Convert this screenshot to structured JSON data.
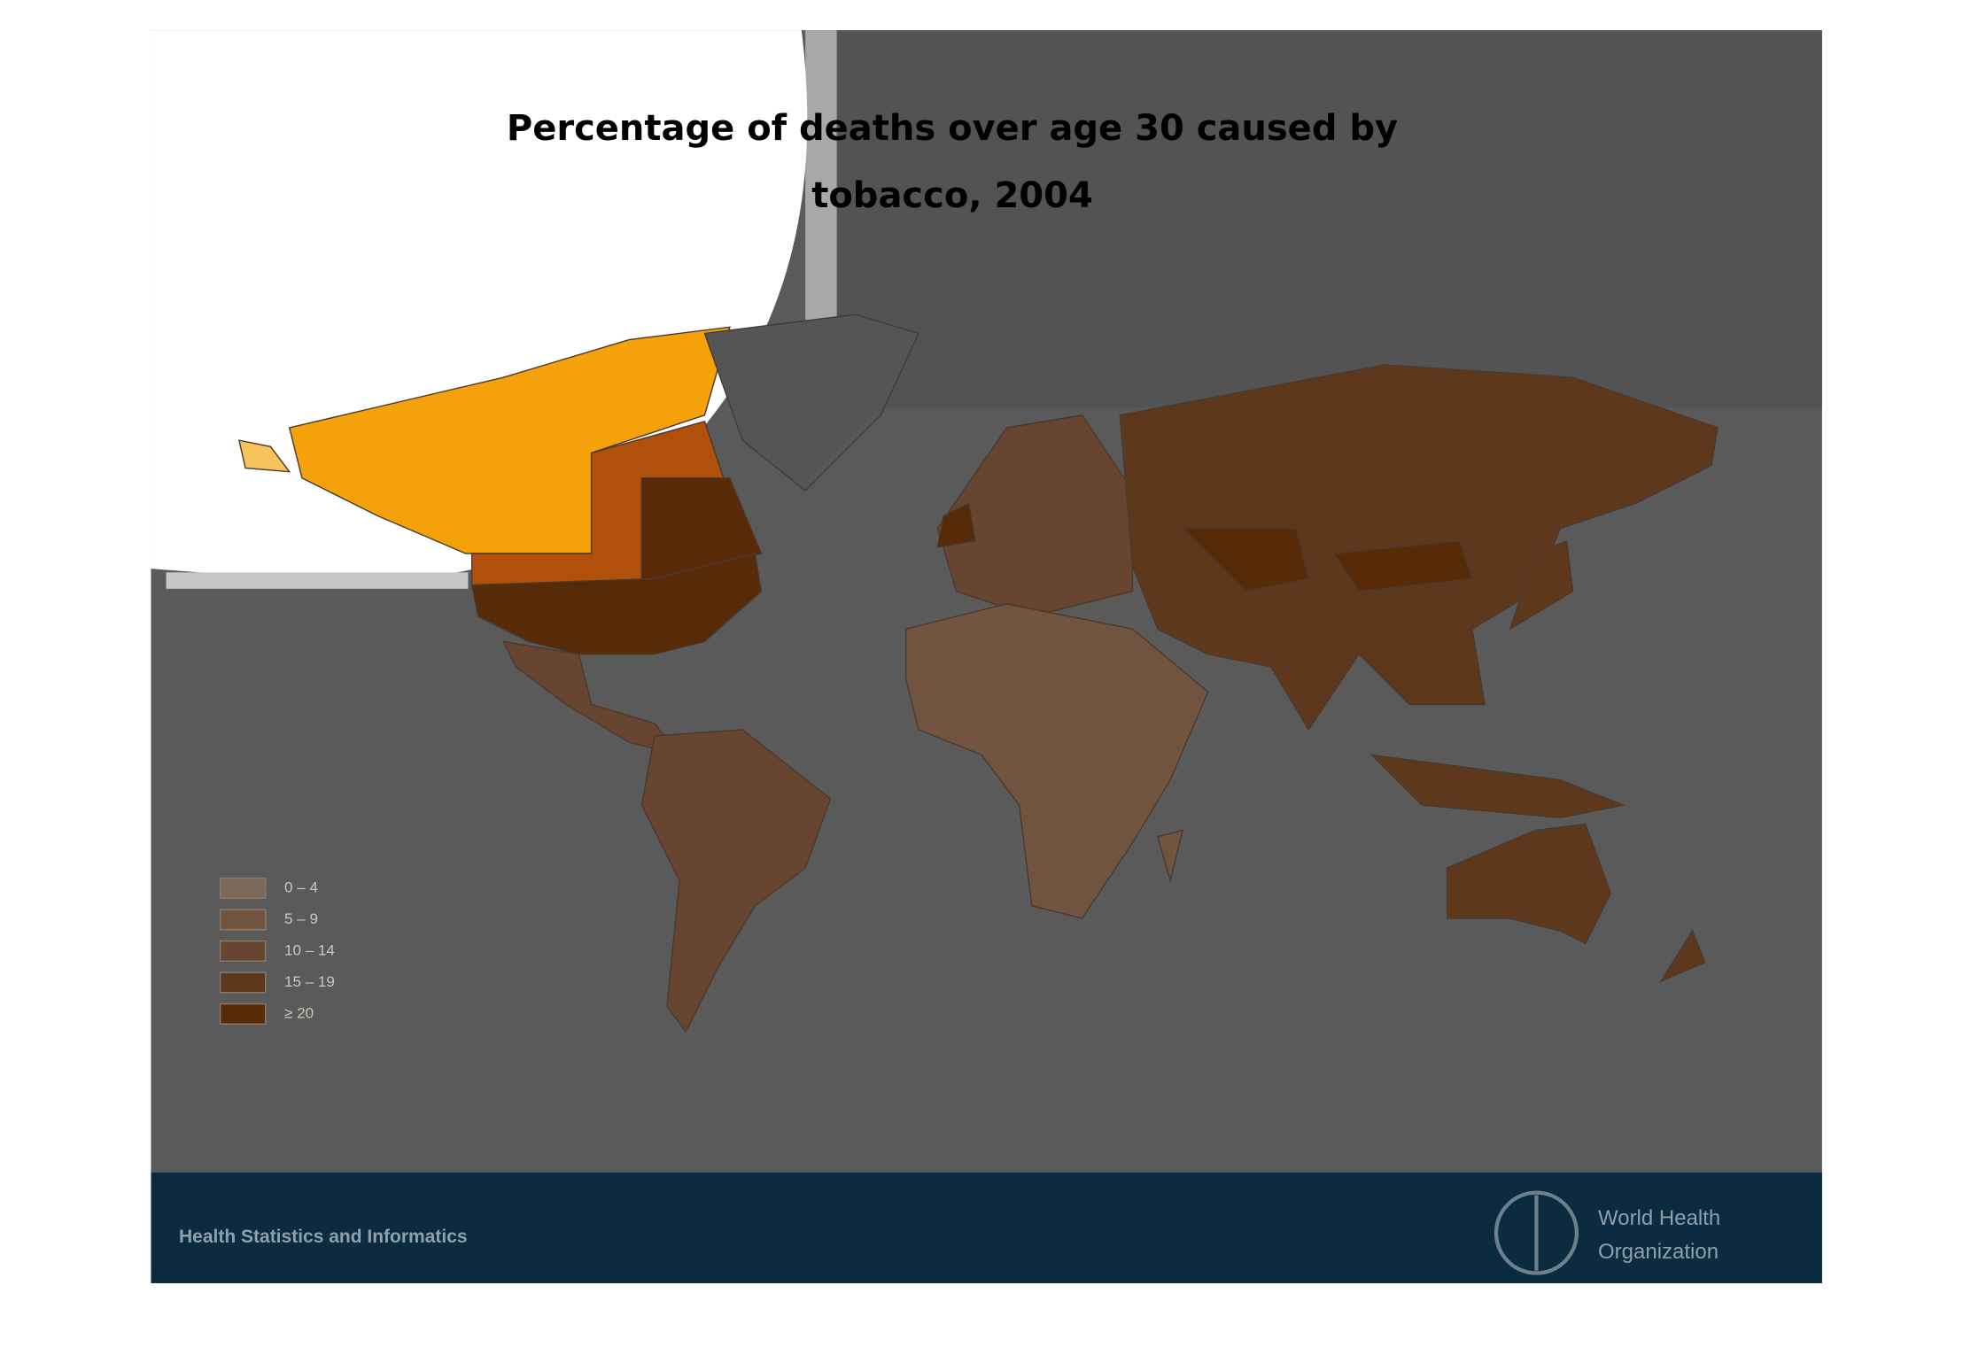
{
  "title": [
    "Percentage of deaths over age 30 caused by",
    "tobacco, 2004"
  ],
  "legend": {
    "items": [
      {
        "label": "0 – 4",
        "color": "#7b6858"
      },
      {
        "label": "5 – 9",
        "color": "#705440"
      },
      {
        "label": "10 – 14",
        "color": "#674530"
      },
      {
        "label": "15 – 19",
        "color": "#5e381c"
      },
      {
        "label": "≥ 20",
        "color": "#572a08"
      }
    ]
  },
  "footer": {
    "left": "Health Statistics and Informatics",
    "org": [
      "World Health",
      "Organization"
    ]
  }
}
